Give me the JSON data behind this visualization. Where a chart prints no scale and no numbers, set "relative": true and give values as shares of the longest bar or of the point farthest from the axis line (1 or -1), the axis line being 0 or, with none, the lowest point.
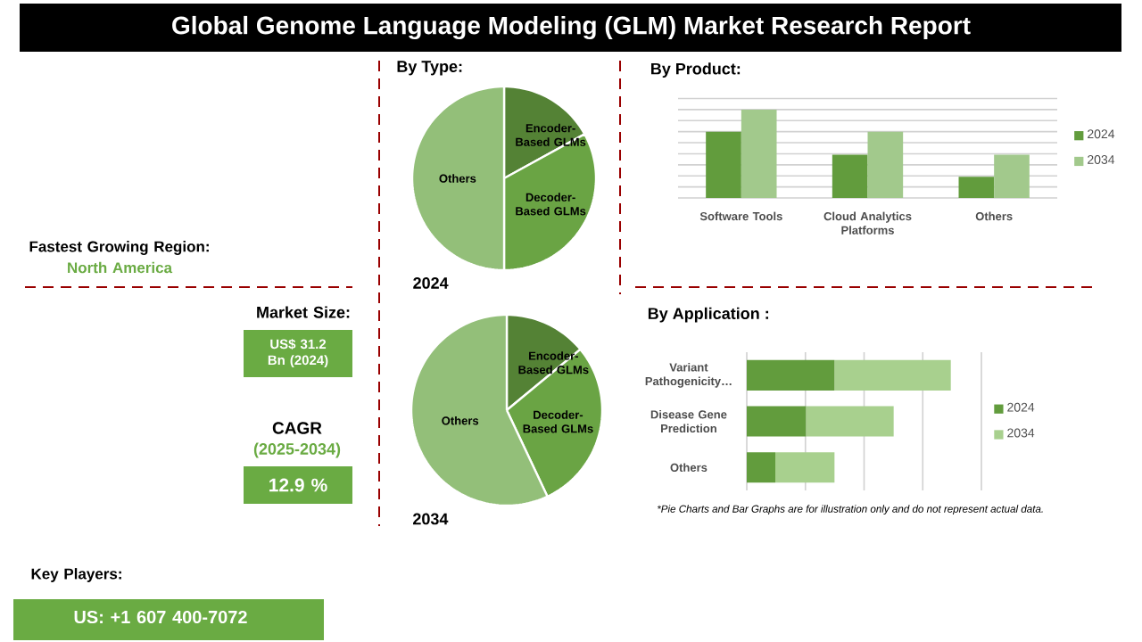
{
  "chart_data": [
    {
      "type": "other",
      "title": "Global Genome Language Modeling (GLM) Market Research Report",
      "color": "#6aab43",
      "annotations": [
        "Fastest Growing Region:",
        "North America",
        "Market Size:",
        "US$ 31.2 Bn (2024)",
        "CAGR",
        "(2025-2034)",
        "12.9 %",
        "Key Players:",
        "US: +1 607 400-7072"
      ]
    },
    {
      "type": "pie",
      "title": "By Type:",
      "xlabel": "2024",
      "categories": [
        "Encoder-Based GLMs",
        "Decoder-Based GLMs",
        "Others"
      ],
      "values": [
        17,
        33,
        50
      ],
      "colors": [
        "#548235",
        "#6aa444",
        "#93bf79"
      ]
    },
    {
      "type": "pie",
      "xlabel": "2034",
      "categories": [
        "Encoder-Based GLMs",
        "Decoder-Based GLMs",
        "Others"
      ],
      "values": [
        14,
        29,
        57
      ],
      "colors": [
        "#548235",
        "#6aa444",
        "#93bf79"
      ]
    },
    {
      "type": "bar",
      "title": "By Product:",
      "relative": true,
      "grid": "y",
      "legend": "right",
      "categories": [
        "Software Tools",
        "Cloud Analytics Platforms",
        "Others"
      ],
      "series": [
        {
          "name": "2024",
          "color": "#629c3d",
          "values": [
            0.75,
            0.49,
            0.24
          ]
        },
        {
          "name": "2034",
          "color": "#a2c98c",
          "values": [
            1,
            0.75,
            0.49
          ]
        }
      ]
    },
    {
      "type": "bar",
      "title": "By Application :",
      "relative": true,
      "orientation": "horizontal",
      "stacked": true,
      "grid": "x",
      "legend": "right",
      "categories": [
        "Variant Pathogenicity…",
        "Disease Gene Prediction",
        "Others"
      ],
      "series": [
        {
          "name": "2024",
          "color": "#629c3d",
          "values": [
            0.43,
            0.29,
            0.14
          ]
        },
        {
          "name": "2034",
          "color": "#a8d08e",
          "values": [
            0.57,
            0.43,
            0.29
          ]
        }
      ],
      "annotations": [
        "*Pie Charts and Bar Graphs are for illustration only and do not represent actual data."
      ]
    }
  ]
}
